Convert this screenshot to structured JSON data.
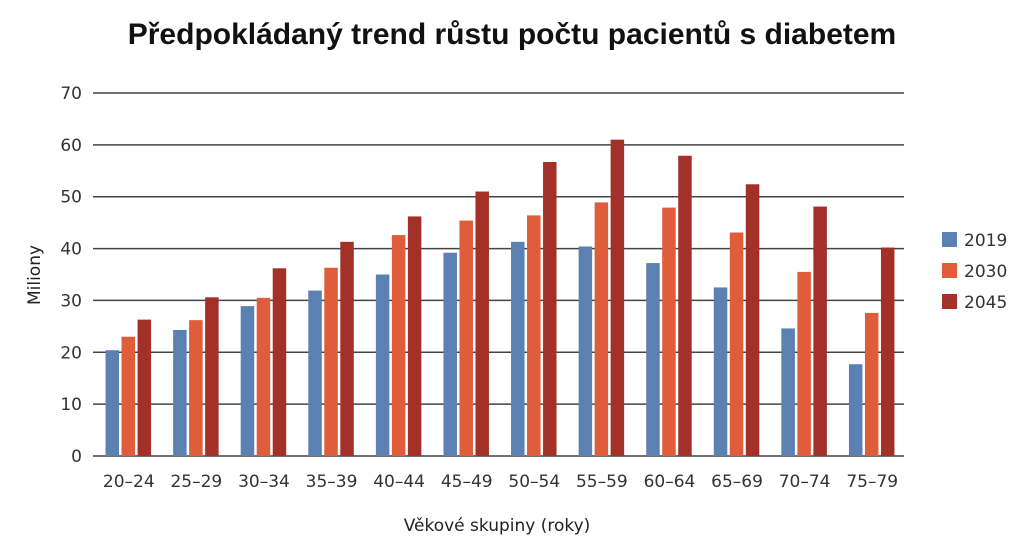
{
  "chart_data": {
    "type": "bar",
    "title": "Předpokládaný trend růstu počtu pacientů s diabetem",
    "xlabel": "Věkové skupiny (roky)",
    "ylabel": "Miliony",
    "ylim": [
      0,
      70
    ],
    "yticks": [
      0,
      10,
      20,
      30,
      40,
      50,
      60,
      70
    ],
    "grid": true,
    "legend_position": "right",
    "categories": [
      "20–24",
      "25–29",
      "30–34",
      "35–39",
      "40–44",
      "45–49",
      "50–54",
      "55–59",
      "60–64",
      "65–69",
      "70–74",
      "75–79"
    ],
    "series": [
      {
        "name": "2019",
        "color": "#5b80b2",
        "values": [
          20.4,
          24.3,
          28.9,
          31.9,
          35.0,
          39.2,
          41.3,
          40.4,
          37.2,
          32.5,
          24.6,
          17.7
        ]
      },
      {
        "name": "2030",
        "color": "#e05d3c",
        "values": [
          23.0,
          26.2,
          30.5,
          36.3,
          42.6,
          45.4,
          46.4,
          48.9,
          47.9,
          43.1,
          35.5,
          27.6
        ]
      },
      {
        "name": "2045",
        "color": "#a3312a",
        "values": [
          26.3,
          30.6,
          36.2,
          41.3,
          46.2,
          51.0,
          56.7,
          61.0,
          57.9,
          52.4,
          48.1,
          40.2
        ]
      }
    ]
  }
}
